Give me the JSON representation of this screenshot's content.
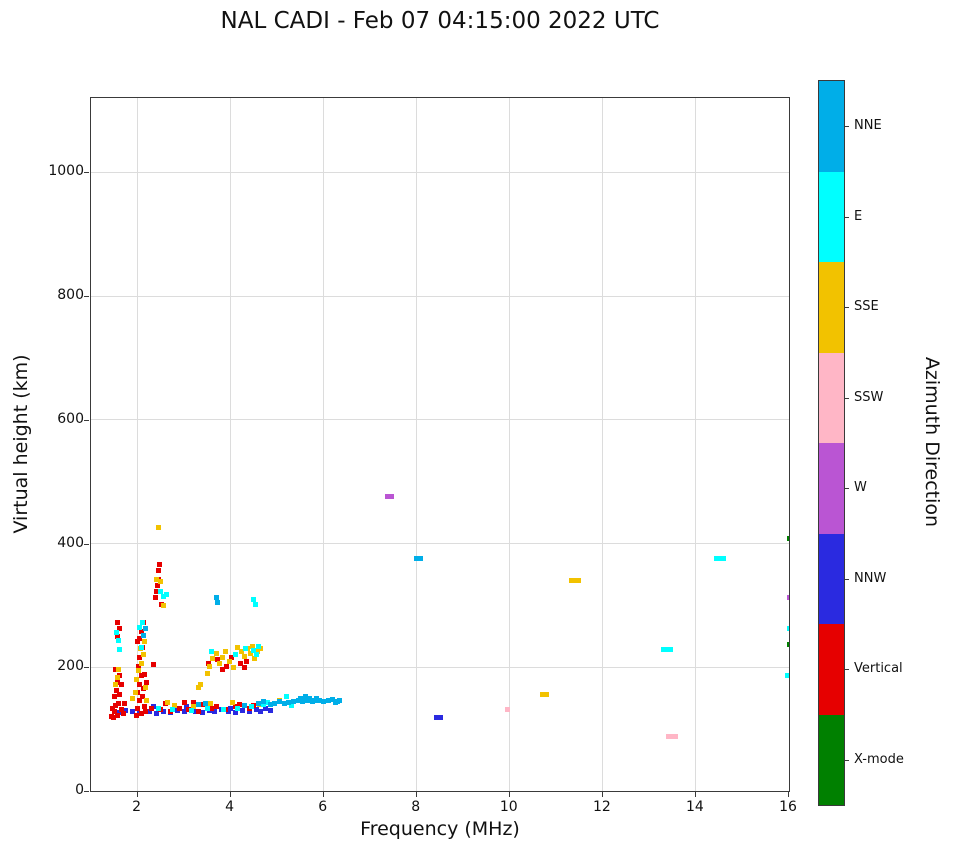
{
  "title": "NAL CADI - Feb 07 04:15:00 2022 UTC",
  "chart_data": {
    "type": "scatter",
    "title": "NAL CADI - Feb 07 04:15:00 2022 UTC",
    "xlabel": "Frequency (MHz)",
    "ylabel": "Virtual height (km)",
    "xlim": [
      1,
      16
    ],
    "ylim": [
      0,
      1120
    ],
    "xticks": [
      2,
      4,
      6,
      8,
      10,
      12,
      14,
      16
    ],
    "yticks": [
      0,
      200,
      400,
      600,
      800,
      1000
    ],
    "grid": true,
    "colorbar": {
      "label": "Azimuth Direction",
      "categories": [
        {
          "label": "NNE",
          "color": "#00aee8"
        },
        {
          "label": "E",
          "color": "#00ffff"
        },
        {
          "label": "SSE",
          "color": "#f2c200"
        },
        {
          "label": "SSW",
          "color": "#ffb6c6"
        },
        {
          "label": "W",
          "color": "#ba55d3"
        },
        {
          "label": "NNW",
          "color": "#2a2ae0"
        },
        {
          "label": "Vertical",
          "color": "#e60000"
        },
        {
          "label": "X-mode",
          "color": "#008000"
        }
      ]
    },
    "series": [
      {
        "name": "NNW",
        "color": "#2a2ae0",
        "points": [
          [
            2.25,
            128
          ],
          [
            2.4,
            126
          ],
          [
            2.55,
            129
          ],
          [
            2.7,
            127
          ],
          [
            2.85,
            130
          ],
          [
            3.0,
            128
          ],
          [
            3.1,
            131
          ],
          [
            3.25,
            129
          ],
          [
            3.4,
            127
          ],
          [
            3.55,
            130
          ],
          [
            3.65,
            128
          ],
          [
            3.8,
            131
          ],
          [
            3.95,
            129
          ],
          [
            4.1,
            127
          ],
          [
            4.25,
            130
          ],
          [
            4.4,
            128
          ],
          [
            4.55,
            131
          ],
          [
            4.65,
            129
          ],
          [
            2.35,
            137
          ],
          [
            3.05,
            136
          ],
          [
            3.5,
            135
          ],
          [
            4.0,
            134
          ],
          [
            4.75,
            133
          ],
          [
            4.85,
            130
          ],
          [
            8.42,
            118
          ],
          [
            8.5,
            118
          ],
          [
            1.9,
            128
          ],
          [
            2.05,
            126
          ],
          [
            1.75,
            130
          ],
          [
            1.6,
            127
          ]
        ]
      },
      {
        "name": "Vertical",
        "color": "#e60000",
        "points": [
          [
            1.48,
            118
          ],
          [
            1.5,
            128
          ],
          [
            1.52,
            138
          ],
          [
            1.5,
            152
          ],
          [
            1.54,
            162
          ],
          [
            1.58,
            122
          ],
          [
            1.6,
            142
          ],
          [
            1.62,
            156
          ],
          [
            1.66,
            132
          ],
          [
            1.56,
            176
          ],
          [
            1.62,
            186
          ],
          [
            1.66,
            172
          ],
          [
            1.52,
            196
          ],
          [
            1.7,
            126
          ],
          [
            1.72,
            142
          ],
          [
            1.58,
            250
          ],
          [
            1.62,
            262
          ],
          [
            1.56,
            272
          ],
          [
            1.45,
            120
          ],
          [
            1.47,
            133
          ],
          [
            1.98,
            122
          ],
          [
            2.0,
            134
          ],
          [
            2.04,
            146
          ],
          [
            2.0,
            160
          ],
          [
            2.04,
            172
          ],
          [
            2.08,
            126
          ],
          [
            2.1,
            152
          ],
          [
            2.12,
            166
          ],
          [
            2.08,
            186
          ],
          [
            2.02,
            202
          ],
          [
            2.04,
            216
          ],
          [
            2.1,
            232
          ],
          [
            2.04,
            246
          ],
          [
            2.08,
            258
          ],
          [
            2.12,
            272
          ],
          [
            2.0,
            242
          ],
          [
            2.16,
            136
          ],
          [
            2.18,
            128
          ],
          [
            2.14,
            188
          ],
          [
            2.2,
            176
          ],
          [
            2.38,
            312
          ],
          [
            2.42,
            332
          ],
          [
            2.44,
            356
          ],
          [
            2.48,
            366
          ],
          [
            2.52,
            302
          ],
          [
            2.46,
            342
          ],
          [
            2.4,
            322
          ],
          [
            2.35,
            205
          ],
          [
            2.3,
            133
          ],
          [
            2.5,
            131
          ],
          [
            2.7,
            129
          ],
          [
            2.9,
            133
          ],
          [
            3.1,
            131
          ],
          [
            3.3,
            129
          ],
          [
            3.6,
            133
          ],
          [
            3.9,
            131
          ],
          [
            4.1,
            136
          ],
          [
            4.4,
            133
          ],
          [
            2.6,
            141
          ],
          [
            3.0,
            143
          ],
          [
            3.4,
            140
          ],
          [
            3.7,
            136
          ],
          [
            4.2,
            140
          ],
          [
            4.5,
            138
          ],
          [
            3.2,
            143
          ],
          [
            3.52,
            206
          ],
          [
            3.72,
            212
          ],
          [
            3.92,
            202
          ],
          [
            4.02,
            216
          ],
          [
            4.22,
            206
          ],
          [
            3.82,
            196
          ],
          [
            4.35,
            210
          ],
          [
            4.3,
            200
          ]
        ]
      },
      {
        "name": "SSE",
        "color": "#f2c200",
        "points": [
          [
            1.52,
            172
          ],
          [
            1.56,
            184
          ],
          [
            1.6,
            196
          ],
          [
            1.98,
            180
          ],
          [
            2.02,
            194
          ],
          [
            2.08,
            206
          ],
          [
            2.12,
            220
          ],
          [
            2.06,
            230
          ],
          [
            2.14,
            242
          ],
          [
            2.18,
            168
          ],
          [
            1.95,
            160
          ],
          [
            2.45,
            426
          ],
          [
            2.4,
            342
          ],
          [
            2.5,
            338
          ],
          [
            2.56,
            300
          ],
          [
            3.55,
            202
          ],
          [
            3.62,
            214
          ],
          [
            3.7,
            222
          ],
          [
            3.76,
            206
          ],
          [
            3.82,
            216
          ],
          [
            3.9,
            226
          ],
          [
            3.98,
            210
          ],
          [
            4.06,
            200
          ],
          [
            4.24,
            226
          ],
          [
            4.3,
            218
          ],
          [
            4.36,
            230
          ],
          [
            4.42,
            222
          ],
          [
            4.48,
            234
          ],
          [
            4.52,
            214
          ],
          [
            4.58,
            226
          ],
          [
            4.64,
            230
          ],
          [
            3.5,
            190
          ],
          [
            4.15,
            232
          ],
          [
            1.9,
            150
          ],
          [
            2.2,
            146
          ],
          [
            2.8,
            138
          ],
          [
            3.2,
            136
          ],
          [
            3.56,
            141
          ],
          [
            4.05,
            143
          ],
          [
            4.62,
            139
          ],
          [
            5.05,
            147
          ],
          [
            2.65,
            143
          ],
          [
            3.35,
            172
          ],
          [
            3.3,
            168
          ],
          [
            10.7,
            156
          ],
          [
            10.78,
            156
          ],
          [
            11.32,
            340
          ],
          [
            11.4,
            340
          ],
          [
            11.48,
            340
          ]
        ]
      },
      {
        "name": "SSW",
        "color": "#ffb6c6",
        "points": [
          [
            9.95,
            132
          ],
          [
            13.4,
            88
          ],
          [
            13.48,
            88
          ],
          [
            13.56,
            88
          ]
        ]
      },
      {
        "name": "W",
        "color": "#ba55d3",
        "points": [
          [
            7.38,
            476
          ],
          [
            7.46,
            476
          ],
          [
            16,
            312
          ]
        ]
      },
      {
        "name": "E",
        "color": "#00ffff",
        "points": [
          [
            1.55,
            256
          ],
          [
            1.6,
            244
          ],
          [
            1.62,
            228
          ],
          [
            2.05,
            264
          ],
          [
            2.1,
            272
          ],
          [
            2.08,
            232
          ],
          [
            2.5,
            322
          ],
          [
            2.56,
            314
          ],
          [
            2.62,
            318
          ],
          [
            2.45,
            134
          ],
          [
            2.75,
            132
          ],
          [
            3.15,
            130
          ],
          [
            3.5,
            133
          ],
          [
            3.85,
            131
          ],
          [
            4.15,
            134
          ],
          [
            4.45,
            136
          ],
          [
            4.7,
            140
          ],
          [
            4.8,
            143
          ],
          [
            5.2,
            152
          ],
          [
            5.3,
            138
          ],
          [
            3.6,
            226
          ],
          [
            4.1,
            221
          ],
          [
            4.32,
            231
          ],
          [
            4.5,
            227
          ],
          [
            4.56,
            220
          ],
          [
            4.6,
            233
          ],
          [
            4.5,
            310
          ],
          [
            4.54,
            302
          ],
          [
            13.3,
            228
          ],
          [
            13.38,
            228
          ],
          [
            13.46,
            228
          ],
          [
            14.45,
            375
          ],
          [
            14.53,
            375
          ],
          [
            14.6,
            375
          ],
          [
            16,
            263
          ],
          [
            15.97,
            186
          ],
          [
            16,
            186
          ]
        ]
      },
      {
        "name": "NNE",
        "color": "#00aee8",
        "points": [
          [
            4.85,
            140
          ],
          [
            4.95,
            142
          ],
          [
            5.05,
            144
          ],
          [
            5.15,
            141
          ],
          [
            5.25,
            143
          ],
          [
            5.35,
            145
          ],
          [
            5.45,
            147
          ],
          [
            5.5,
            150
          ],
          [
            5.55,
            144
          ],
          [
            5.6,
            152
          ],
          [
            5.65,
            147
          ],
          [
            5.7,
            149
          ],
          [
            5.75,
            145
          ],
          [
            5.8,
            147
          ],
          [
            5.85,
            150
          ],
          [
            5.9,
            146
          ],
          [
            6.0,
            144
          ],
          [
            6.1,
            146
          ],
          [
            6.2,
            148
          ],
          [
            6.25,
            143
          ],
          [
            6.3,
            145
          ],
          [
            6.35,
            146
          ],
          [
            3.7,
            312
          ],
          [
            3.72,
            304
          ],
          [
            2.12,
            252
          ],
          [
            2.18,
            262
          ],
          [
            3.3,
            140
          ],
          [
            3.45,
            142
          ],
          [
            4.3,
            138
          ],
          [
            4.6,
            142
          ],
          [
            4.7,
            144
          ],
          [
            8.0,
            375
          ],
          [
            8.08,
            375
          ]
        ]
      },
      {
        "name": "X-mode",
        "color": "#008000",
        "points": [
          [
            16,
            408
          ],
          [
            16,
            237
          ]
        ]
      }
    ]
  }
}
